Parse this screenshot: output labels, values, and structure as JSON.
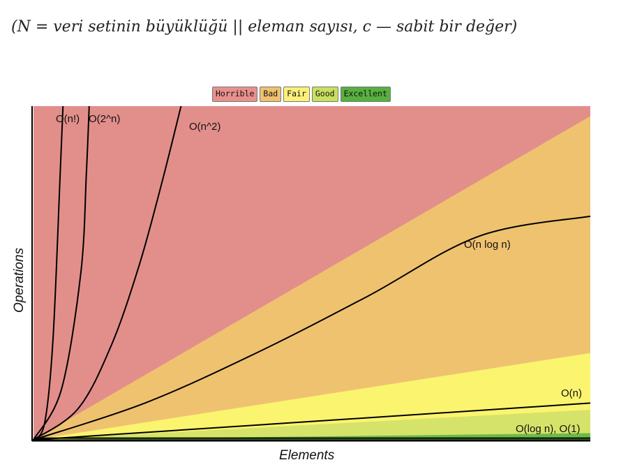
{
  "caption": "(N = veri setinin büyüklüğü || eleman sayısı, c — sabit bir değer)",
  "legend": [
    {
      "label": "Horrible",
      "color": "#e8908c"
    },
    {
      "label": "Bad",
      "color": "#f0c070"
    },
    {
      "label": "Fair",
      "color": "#fbf07a"
    },
    {
      "label": "Good",
      "color": "#c8e060"
    },
    {
      "label": "Excellent",
      "color": "#58b040"
    }
  ],
  "chart_data": {
    "type": "line",
    "title": "",
    "xlabel": "Elements",
    "ylabel": "Operations",
    "xlim": [
      0,
      100
    ],
    "ylim": [
      0,
      100
    ],
    "grid": false,
    "regions": [
      {
        "name": "Horrible",
        "color": "#e28f8b",
        "upper_bound_y_at_xmax": 100
      },
      {
        "name": "Bad",
        "color": "#efc270",
        "upper_bound_y_at_xmax": 97
      },
      {
        "name": "Fair",
        "color": "#fbf46f",
        "upper_bound_y_at_xmax": 26
      },
      {
        "name": "Good",
        "color": "#d5e36a",
        "upper_bound_y_at_xmax": 9
      },
      {
        "name": "Excellent",
        "color": "#6cba48",
        "upper_bound_y_at_xmax": 2
      }
    ],
    "series": [
      {
        "name": "O(n!)",
        "x": [
          0,
          2,
          3.5,
          4.8,
          5.3
        ],
        "y": [
          0,
          5,
          30,
          80,
          100
        ]
      },
      {
        "name": "O(2^n)",
        "x": [
          0,
          5,
          8.5,
          9.5,
          10
        ],
        "y": [
          0,
          15,
          50,
          80,
          100
        ]
      },
      {
        "name": "O(n^2)",
        "x": [
          0,
          8,
          14,
          19,
          23,
          26.5
        ],
        "y": [
          0,
          9.3,
          28.4,
          52.4,
          76.7,
          100
        ]
      },
      {
        "name": "O(n log n)",
        "x": [
          0,
          20,
          40,
          60,
          80,
          100
        ],
        "y": [
          0,
          11,
          26,
          43,
          61,
          67
        ]
      },
      {
        "name": "O(n)",
        "x": [
          0,
          100
        ],
        "y": [
          0,
          11
        ]
      },
      {
        "name": "O(log n), O(1)",
        "x": [
          0,
          100
        ],
        "y": [
          0.5,
          0.5
        ]
      }
    ],
    "labels": [
      "O(n!)",
      "O(2^n)",
      "O(n^2)",
      "O(n log n)",
      "O(n)",
      "O(log n), O(1)"
    ]
  }
}
